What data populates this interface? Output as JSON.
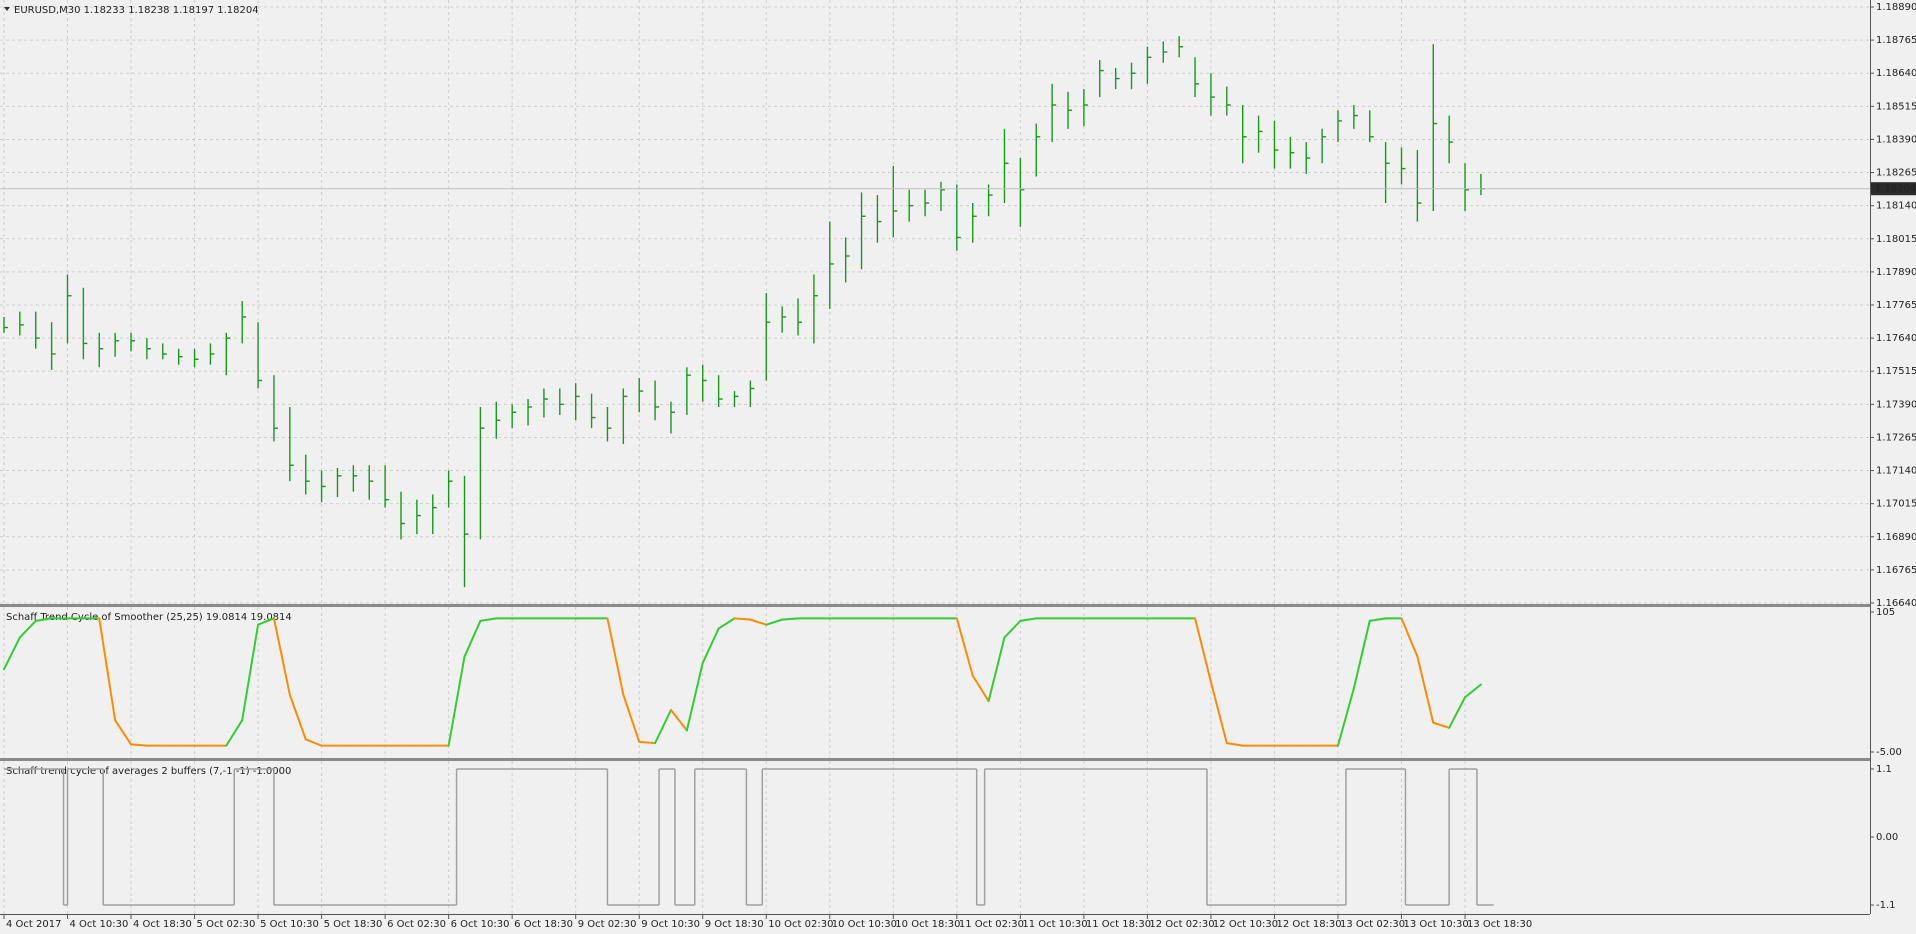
{
  "chart_data": [
    {
      "type": "ohlc",
      "title": "EURUSD,M30  1.18233 1.18238 1.18197 1.18204",
      "color": "#17991a",
      "grid": true,
      "xlim": [
        -1,
        470
      ],
      "ylim": [
        1.1664,
        1.1889
      ],
      "yticks": [
        {
          "value": 1.1889,
          "label": "1.18890"
        },
        1.18765,
        {
          "value": 1.1864,
          "label": "1.18640"
        },
        1.18515,
        {
          "value": 1.1839,
          "label": "1.18390"
        },
        1.18265,
        {
          "value": 1.1814,
          "label": "1.18140"
        },
        1.18015,
        {
          "value": 1.1789,
          "label": "1.17890"
        },
        1.17765,
        {
          "value": 1.1764,
          "label": "1.17640"
        },
        1.17515,
        {
          "value": 1.1739,
          "label": "1.17390"
        },
        1.17265,
        {
          "value": 1.1714,
          "label": "1.17140"
        },
        1.17015,
        {
          "value": 1.1689,
          "label": "1.16890"
        },
        1.16765,
        {
          "value": 1.1664,
          "label": "1.16640"
        }
      ],
      "xticks": [
        {
          "value": 0,
          "label": "4 Oct 2017"
        },
        {
          "value": 16,
          "label": "4 Oct 10:30"
        },
        {
          "value": 32,
          "label": "4 Oct 18:30"
        },
        {
          "value": 48,
          "label": "5 Oct 02:30"
        },
        {
          "value": 64,
          "label": "5 Oct 10:30"
        },
        {
          "value": 80,
          "label": "5 Oct 18:30"
        },
        {
          "value": 96,
          "label": "6 Oct 02:30"
        },
        {
          "value": 112,
          "label": "6 Oct 10:30"
        },
        {
          "value": 128,
          "label": "6 Oct 18:30"
        },
        {
          "value": 144,
          "label": "9 Oct 02:30"
        },
        {
          "value": 160,
          "label": "9 Oct 10:30"
        },
        {
          "value": 176,
          "label": "9 Oct 18:30"
        },
        {
          "value": 192,
          "label": "10 Oct 02:30"
        },
        {
          "value": 208,
          "label": "10 Oct 10:30"
        },
        {
          "value": 224,
          "label": "10 Oct 18:30"
        },
        {
          "value": 240,
          "label": "11 Oct 02:30"
        },
        {
          "value": 256,
          "label": "11 Oct 10:30"
        },
        {
          "value": 272,
          "label": "11 Oct 18:30"
        },
        {
          "value": 288,
          "label": "12 Oct 02:30"
        },
        {
          "value": 304,
          "label": "12 Oct 10:30"
        },
        {
          "value": 320,
          "label": "12 Oct 18:30"
        },
        {
          "value": 336,
          "label": "13 Oct 02:30"
        },
        {
          "value": 352,
          "label": "13 Oct 10:30"
        },
        {
          "value": 368,
          "label": "13 Oct 18:30"
        }
      ],
      "last_price": {
        "value": 1.18204,
        "label": "1.18204"
      },
      "x": [
        0,
        4,
        8,
        12,
        16,
        20,
        24,
        28,
        32,
        36,
        40,
        44,
        48,
        52,
        56,
        60,
        64,
        68,
        72,
        76,
        80,
        84,
        88,
        92,
        96,
        100,
        104,
        108,
        112,
        116,
        120,
        124,
        128,
        132,
        136,
        140,
        144,
        148,
        152,
        156,
        160,
        164,
        168,
        172,
        176,
        180,
        184,
        188,
        192,
        196,
        200,
        204,
        208,
        212,
        216,
        220,
        224,
        228,
        232,
        236,
        240,
        244,
        248,
        252,
        256,
        260,
        264,
        268,
        272,
        276,
        280,
        284,
        288,
        292,
        296,
        300,
        304,
        308,
        312,
        316,
        320,
        324,
        328,
        332,
        336,
        340,
        344,
        348,
        352,
        356,
        360,
        364,
        368,
        372
      ],
      "high": [
        1.1772,
        1.1774,
        1.1774,
        1.177,
        1.1788,
        1.1783,
        1.1766,
        1.1766,
        1.1766,
        1.1764,
        1.1762,
        1.176,
        1.176,
        1.1762,
        1.1766,
        1.1778,
        1.177,
        1.175,
        1.1738,
        1.172,
        1.1714,
        1.1715,
        1.1716,
        1.1716,
        1.1716,
        1.1706,
        1.1703,
        1.1705,
        1.1714,
        1.1712,
        1.1738,
        1.174,
        1.1739,
        1.1741,
        1.1745,
        1.1745,
        1.1747,
        1.1743,
        1.1738,
        1.1745,
        1.1749,
        1.1748,
        1.174,
        1.1753,
        1.1754,
        1.175,
        1.1744,
        1.1748,
        1.1781,
        1.1776,
        1.1779,
        1.1788,
        1.1808,
        1.1802,
        1.1819,
        1.1818,
        1.1829,
        1.182,
        1.182,
        1.1823,
        1.1822,
        1.1815,
        1.1822,
        1.1843,
        1.1832,
        1.1845,
        1.186,
        1.1857,
        1.1858,
        1.1869,
        1.1866,
        1.1868,
        1.1874,
        1.1876,
        1.1878,
        1.187,
        1.1864,
        1.1859,
        1.1852,
        1.1848,
        1.1846,
        1.184,
        1.1838,
        1.1843,
        1.185,
        1.1852,
        1.185,
        1.1838,
        1.1836,
        1.1835,
        1.1875,
        1.1848,
        1.183,
        1.1826
      ],
      "low": [
        1.1766,
        1.1765,
        1.176,
        1.1752,
        1.1762,
        1.1756,
        1.1753,
        1.1757,
        1.1759,
        1.1756,
        1.1756,
        1.1754,
        1.1753,
        1.1754,
        1.175,
        1.1762,
        1.1745,
        1.1725,
        1.171,
        1.1705,
        1.1702,
        1.1704,
        1.1706,
        1.1703,
        1.17,
        1.1688,
        1.169,
        1.169,
        1.17,
        1.167,
        1.1688,
        1.1726,
        1.173,
        1.1731,
        1.1734,
        1.1735,
        1.1733,
        1.173,
        1.1725,
        1.1724,
        1.1736,
        1.1733,
        1.1728,
        1.1735,
        1.174,
        1.1738,
        1.1738,
        1.1738,
        1.1748,
        1.1766,
        1.1765,
        1.1762,
        1.1775,
        1.1785,
        1.179,
        1.18,
        1.1802,
        1.1808,
        1.181,
        1.1812,
        1.1797,
        1.18,
        1.181,
        1.1815,
        1.1806,
        1.1825,
        1.1838,
        1.1843,
        1.1844,
        1.1855,
        1.1858,
        1.1858,
        1.186,
        1.1868,
        1.187,
        1.1855,
        1.1848,
        1.1848,
        1.183,
        1.1834,
        1.1828,
        1.1828,
        1.1826,
        1.183,
        1.1838,
        1.1843,
        1.1838,
        1.1815,
        1.1822,
        1.1808,
        1.1812,
        1.183,
        1.1812,
        1.1818
      ],
      "close": [
        1.1768,
        1.1769,
        1.1764,
        1.1758,
        1.178,
        1.1762,
        1.176,
        1.1763,
        1.1763,
        1.176,
        1.1758,
        1.1757,
        1.1756,
        1.1758,
        1.1764,
        1.1772,
        1.1748,
        1.173,
        1.1716,
        1.171,
        1.1708,
        1.1712,
        1.1712,
        1.171,
        1.1703,
        1.1694,
        1.1697,
        1.17,
        1.171,
        1.169,
        1.173,
        1.1733,
        1.1736,
        1.1738,
        1.1741,
        1.1739,
        1.1742,
        1.1734,
        1.173,
        1.1742,
        1.1744,
        1.1738,
        1.1736,
        1.175,
        1.1748,
        1.1741,
        1.1742,
        1.1745,
        1.177,
        1.1772,
        1.177,
        1.178,
        1.1792,
        1.1795,
        1.181,
        1.1808,
        1.1812,
        1.1814,
        1.1815,
        1.182,
        1.1802,
        1.181,
        1.1818,
        1.183,
        1.182,
        1.184,
        1.1852,
        1.185,
        1.1852,
        1.1865,
        1.1862,
        1.1864,
        1.187,
        1.1872,
        1.1874,
        1.186,
        1.1855,
        1.1852,
        1.184,
        1.1842,
        1.1835,
        1.1834,
        1.1832,
        1.184,
        1.1846,
        1.1848,
        1.184,
        1.183,
        1.1828,
        1.1815,
        1.1845,
        1.1838,
        1.182,
        1.18204
      ]
    },
    {
      "type": "line",
      "title": "Schaff Trend Cycle of Smoother (25,25) 19.0814 19.0814",
      "color_up": "#32cd32",
      "color_down": "#ff8c00",
      "xlim": [
        -1,
        470
      ],
      "ylim": [
        -5,
        105
      ],
      "yticks": [
        105,
        {
          "value": -5,
          "label": "-5.00"
        }
      ],
      "x": [
        0,
        4,
        8,
        12,
        16,
        20,
        24,
        28,
        32,
        36,
        40,
        44,
        48,
        52,
        56,
        60,
        64,
        68,
        72,
        76,
        80,
        84,
        88,
        92,
        96,
        100,
        104,
        108,
        112,
        116,
        120,
        124,
        128,
        132,
        136,
        140,
        144,
        148,
        152,
        156,
        160,
        164,
        168,
        172,
        176,
        180,
        184,
        188,
        192,
        196,
        200,
        204,
        208,
        212,
        216,
        220,
        224,
        228,
        232,
        236,
        240,
        244,
        248,
        252,
        256,
        260,
        264,
        268,
        272,
        276,
        280,
        284,
        288,
        292,
        296,
        300,
        304,
        308,
        312,
        316,
        320,
        324,
        328,
        332,
        336,
        340,
        344,
        348,
        352,
        356,
        360,
        364,
        368,
        372
      ],
      "values": [
        60,
        85,
        98,
        100,
        100,
        100,
        100,
        20,
        1,
        0,
        0,
        0,
        0,
        0,
        0,
        20,
        95,
        100,
        40,
        5,
        0,
        0,
        0,
        0,
        0,
        0,
        0,
        0,
        0,
        70,
        98,
        100,
        100,
        100,
        100,
        100,
        100,
        100,
        100,
        40,
        3,
        2,
        28,
        12,
        65,
        92,
        100,
        99,
        95,
        99,
        100,
        100,
        100,
        100,
        100,
        100,
        100,
        100,
        100,
        100,
        100,
        55,
        35,
        85,
        98,
        100,
        100,
        100,
        100,
        100,
        100,
        100,
        100,
        100,
        100,
        100,
        50,
        2,
        0,
        0,
        0,
        0,
        0,
        0,
        0,
        45,
        98,
        100,
        100,
        70,
        18,
        14,
        38,
        48
      ]
    },
    {
      "type": "step",
      "title": "Schaff trend cycle of averages 2 buffers (7,-1,-1) -1.0000",
      "color": "#a0a0a0",
      "xlim": [
        -1,
        470
      ],
      "ylim": [
        -1.1,
        1.1
      ],
      "yticks": [
        1.1,
        {
          "value": 0,
          "label": "0.00"
        },
        -1.1
      ],
      "x": [
        0,
        15,
        16,
        25,
        58,
        68,
        114,
        152,
        165,
        169,
        174,
        187,
        191,
        245,
        247,
        303,
        338,
        353,
        364,
        371,
        375
      ],
      "values": [
        1.1,
        -1.1,
        1.1,
        -1.1,
        1.1,
        -1.1,
        1.1,
        -1.1,
        1.1,
        -1.1,
        1.1,
        -1.1,
        1.1,
        -1.1,
        1.1,
        -1.1,
        1.1,
        -1.1,
        1.1,
        -1.1,
        -1.1
      ]
    }
  ]
}
